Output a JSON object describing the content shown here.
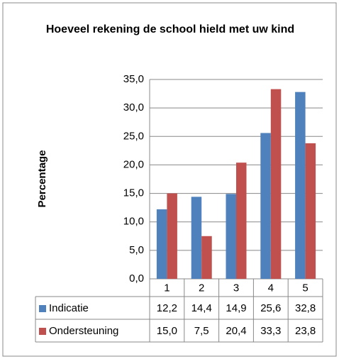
{
  "chart_data": {
    "type": "bar",
    "title": "Hoeveel rekening de school hield met uw kind",
    "y_label": "Percentage",
    "categories": [
      "1",
      "2",
      "3",
      "4",
      "5"
    ],
    "series": [
      {
        "name": "Indicatie",
        "color": "#4f81bd",
        "values": [
          12.2,
          14.4,
          14.9,
          25.6,
          32.8
        ],
        "value_labels": [
          "12,2",
          "14,4",
          "14,9",
          "25,6",
          "32,8"
        ]
      },
      {
        "name": "Ondersteuning",
        "color": "#c0504d",
        "values": [
          15.0,
          7.5,
          20.4,
          33.3,
          23.8
        ],
        "value_labels": [
          "15,0",
          "7,5",
          "20,4",
          "33,3",
          "23,8"
        ]
      }
    ],
    "ylim": [
      0,
      35
    ],
    "yticks": [
      {
        "value": 0,
        "label": "0,0"
      },
      {
        "value": 5,
        "label": "5,0"
      },
      {
        "value": 10,
        "label": "10,0"
      },
      {
        "value": 15,
        "label": "15,0"
      },
      {
        "value": 20,
        "label": "20,0"
      },
      {
        "value": 25,
        "label": "25,0"
      },
      {
        "value": 30,
        "label": "30,0"
      },
      {
        "value": 35,
        "label": "35,0"
      }
    ],
    "grid": true
  }
}
